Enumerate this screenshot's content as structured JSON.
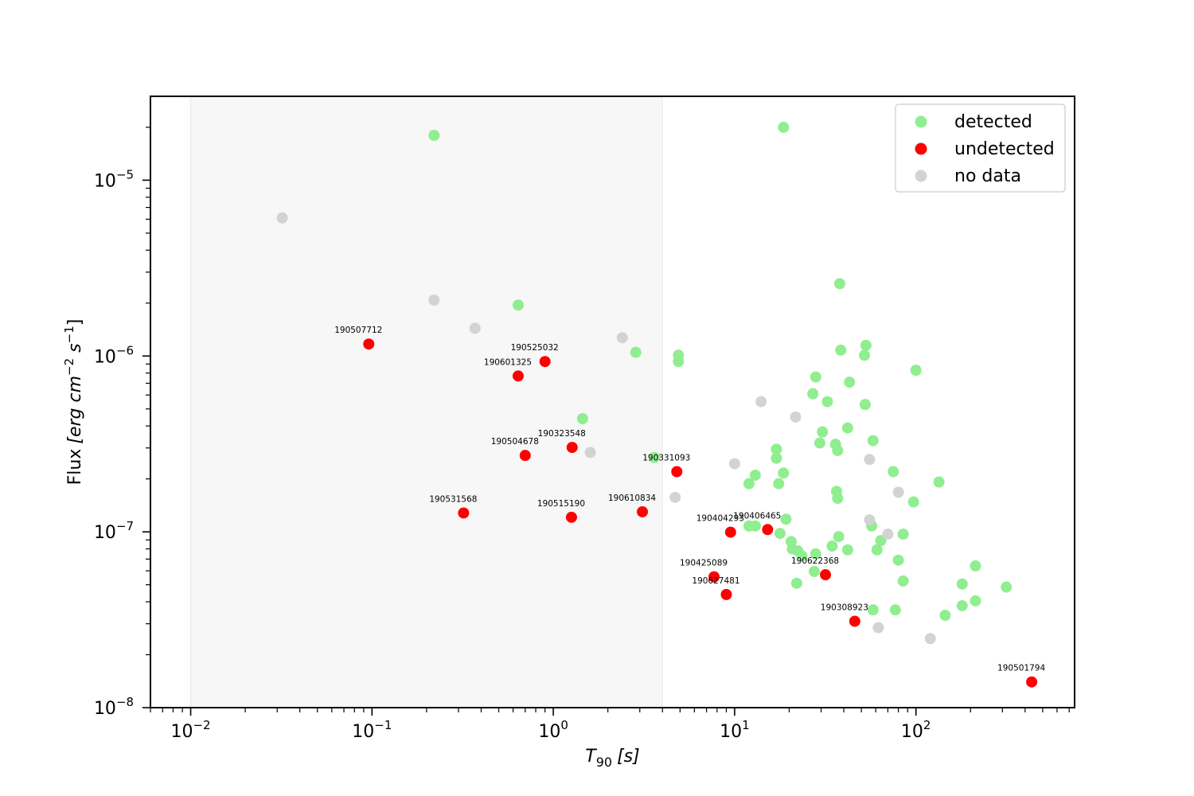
{
  "chart_data": {
    "type": "scatter",
    "xscale": "log",
    "yscale": "log",
    "xlim": [
      0.006,
      750
    ],
    "ylim": [
      1e-08,
      3e-05
    ],
    "xlabel_base": "T",
    "xlabel_sub": "90",
    "xlabel_unit": "[s]",
    "ylabel_text": "Flux",
    "ylabel_unit": "[erg cm",
    "ylabel_exp1": "−2",
    "ylabel_mid": " s",
    "ylabel_exp2": "−1",
    "ylabel_close": "]",
    "xticks": [
      {
        "value": 0.01,
        "base": "10",
        "exp": "−2"
      },
      {
        "value": 0.1,
        "base": "10",
        "exp": "−1"
      },
      {
        "value": 1,
        "base": "10",
        "exp": "0"
      },
      {
        "value": 10,
        "base": "10",
        "exp": "1"
      },
      {
        "value": 100,
        "base": "10",
        "exp": "2"
      }
    ],
    "yticks": [
      {
        "value": 1e-08,
        "base": "10",
        "exp": "−8"
      },
      {
        "value": 1e-07,
        "base": "10",
        "exp": "−7"
      },
      {
        "value": 1e-06,
        "base": "10",
        "exp": "−6"
      },
      {
        "value": 1e-05,
        "base": "10",
        "exp": "−5"
      }
    ],
    "shaded_region": {
      "x0": 0.01,
      "x1": 4.0,
      "color": "#f7f7f7"
    },
    "legend_position": "upper-right",
    "series": [
      {
        "name": "detected",
        "color": "#90ee90",
        "points": [
          [
            0.22,
            1.8e-05
          ],
          [
            18.6,
            2e-05
          ],
          [
            0.64,
            1.95e-06
          ],
          [
            38,
            2.58e-06
          ],
          [
            2.85,
            1.05e-06
          ],
          [
            4.9,
            1.01e-06
          ],
          [
            4.9,
            9.3e-07
          ],
          [
            38.5,
            1.08e-06
          ],
          [
            53,
            1.15e-06
          ],
          [
            52,
            1.01e-06
          ],
          [
            100,
            8.3e-07
          ],
          [
            28,
            7.6e-07
          ],
          [
            43,
            7.1e-07
          ],
          [
            27,
            6.1e-07
          ],
          [
            32.5,
            5.5e-07
          ],
          [
            52.5,
            5.3e-07
          ],
          [
            1.45,
            4.4e-07
          ],
          [
            42,
            3.9e-07
          ],
          [
            30.5,
            3.7e-07
          ],
          [
            29.5,
            3.2e-07
          ],
          [
            36,
            3.15e-07
          ],
          [
            37,
            2.9e-07
          ],
          [
            58,
            3.3e-07
          ],
          [
            3.6,
            2.65e-07
          ],
          [
            17,
            2.95e-07
          ],
          [
            17,
            2.62e-07
          ],
          [
            18.6,
            2.16e-07
          ],
          [
            13,
            2.1e-07
          ],
          [
            12,
            1.88e-07
          ],
          [
            17.5,
            1.88e-07
          ],
          [
            75,
            2.2e-07
          ],
          [
            134,
            1.92e-07
          ],
          [
            36.5,
            1.7e-07
          ],
          [
            37,
            1.55e-07
          ],
          [
            97,
            1.48e-07
          ],
          [
            19.2,
            1.18e-07
          ],
          [
            12,
            1.08e-07
          ],
          [
            13,
            1.08e-07
          ],
          [
            17.8,
            9.8e-08
          ],
          [
            37.5,
            9.4e-08
          ],
          [
            57,
            1.08e-07
          ],
          [
            85,
            9.7e-08
          ],
          [
            20.5,
            8.8e-08
          ],
          [
            20.8,
            8e-08
          ],
          [
            22.3,
            7.8e-08
          ],
          [
            23.5,
            7.3e-08
          ],
          [
            34.5,
            8.3e-08
          ],
          [
            42,
            7.9e-08
          ],
          [
            64,
            8.9e-08
          ],
          [
            61,
            7.9e-08
          ],
          [
            28,
            7.5e-08
          ],
          [
            80,
            6.9e-08
          ],
          [
            213,
            6.4e-08
          ],
          [
            27.5,
            5.95e-08
          ],
          [
            22,
            5.1e-08
          ],
          [
            85,
            5.25e-08
          ],
          [
            180,
            5.05e-08
          ],
          [
            315,
            4.85e-08
          ],
          [
            213,
            4.05e-08
          ],
          [
            58,
            3.6e-08
          ],
          [
            77,
            3.6e-08
          ],
          [
            180,
            3.8e-08
          ],
          [
            145,
            3.35e-08
          ]
        ]
      },
      {
        "name": "undetected",
        "color": "#ff0000",
        "points": [
          {
            "x": 0.096,
            "y": 1.17e-06,
            "label": "190507712"
          },
          {
            "x": 0.9,
            "y": 9.3e-07,
            "label": "190525032"
          },
          {
            "x": 0.64,
            "y": 7.7e-07,
            "label": "190601325"
          },
          {
            "x": 1.27,
            "y": 3.02e-07,
            "label": "190323548"
          },
          {
            "x": 0.7,
            "y": 2.72e-07,
            "label": "190504678"
          },
          {
            "x": 4.8,
            "y": 2.2e-07,
            "label": "190331093"
          },
          {
            "x": 0.32,
            "y": 1.28e-07,
            "label": "190531568"
          },
          {
            "x": 1.26,
            "y": 1.21e-07,
            "label": "190515190"
          },
          {
            "x": 3.1,
            "y": 1.3e-07,
            "label": "190610834"
          },
          {
            "x": 9.5,
            "y": 9.95e-08,
            "label": "190404293"
          },
          {
            "x": 15.2,
            "y": 1.03e-07,
            "label": "190406465"
          },
          {
            "x": 7.7,
            "y": 5.55e-08,
            "label": "190425089"
          },
          {
            "x": 31.7,
            "y": 5.7e-08,
            "label": "190622368"
          },
          {
            "x": 9,
            "y": 4.4e-08,
            "label": "190627481"
          },
          {
            "x": 46,
            "y": 3.1e-08,
            "label": "190308923"
          },
          {
            "x": 435,
            "y": 1.4e-08,
            "label": "190501794"
          }
        ]
      },
      {
        "name": "no data",
        "color": "#d3d3d3",
        "points": [
          [
            0.032,
            6.1e-06
          ],
          [
            0.22,
            2.08e-06
          ],
          [
            0.37,
            1.44e-06
          ],
          [
            2.4,
            1.27e-06
          ],
          [
            14,
            5.5e-07
          ],
          [
            21.7,
            4.5e-07
          ],
          [
            1.6,
            2.83e-07
          ],
          [
            55.5,
            2.58e-07
          ],
          [
            10,
            2.44e-07
          ],
          [
            80,
            1.68e-07
          ],
          [
            4.7,
            1.57e-07
          ],
          [
            55.5,
            1.17e-07
          ],
          [
            70,
            9.7e-08
          ],
          [
            62,
            2.85e-08
          ],
          [
            120,
            2.47e-08
          ]
        ]
      }
    ]
  }
}
